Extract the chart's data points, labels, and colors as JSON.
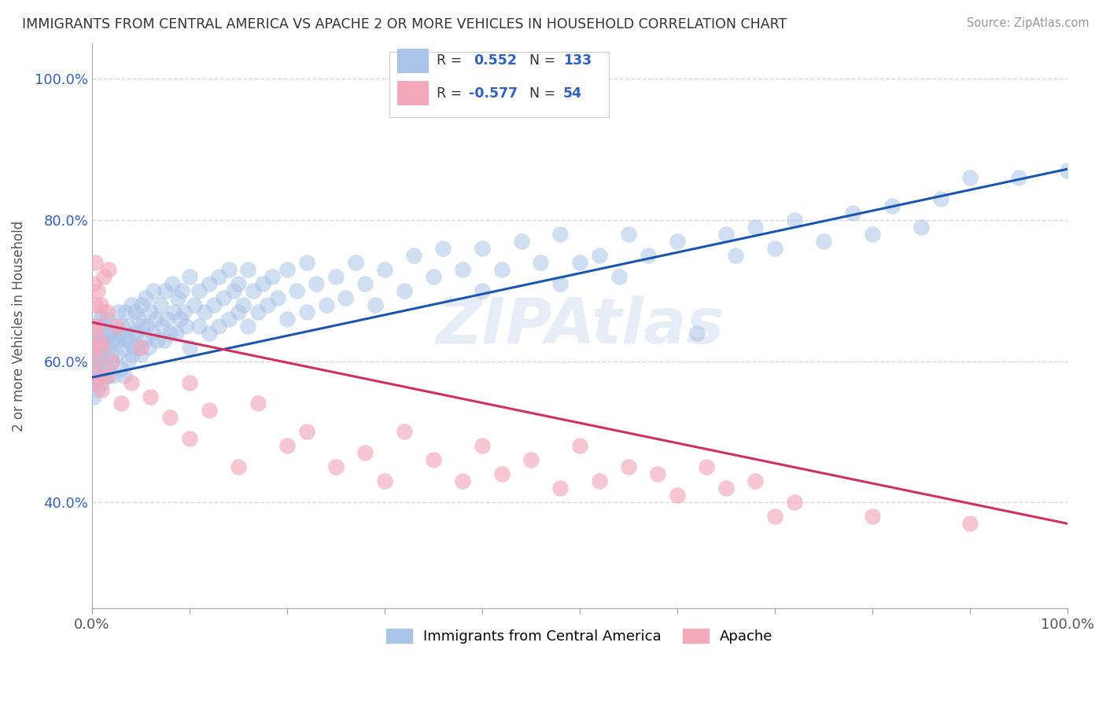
{
  "title": "IMMIGRANTS FROM CENTRAL AMERICA VS APACHE 2 OR MORE VEHICLES IN HOUSEHOLD CORRELATION CHART",
  "source": "Source: ZipAtlas.com",
  "ylabel": "2 or more Vehicles in Household",
  "legend_entries": [
    {
      "label": "Immigrants from Central America",
      "color": "#aac4e8"
    },
    {
      "label": "Apache",
      "color": "#f4a8bc"
    }
  ],
  "blue_scatter": [
    [
      0.001,
      0.57
    ],
    [
      0.002,
      0.6
    ],
    [
      0.002,
      0.55
    ],
    [
      0.003,
      0.62
    ],
    [
      0.003,
      0.58
    ],
    [
      0.004,
      0.61
    ],
    [
      0.004,
      0.64
    ],
    [
      0.005,
      0.59
    ],
    [
      0.005,
      0.63
    ],
    [
      0.006,
      0.56
    ],
    [
      0.006,
      0.6
    ],
    [
      0.007,
      0.62
    ],
    [
      0.007,
      0.65
    ],
    [
      0.008,
      0.58
    ],
    [
      0.008,
      0.63
    ],
    [
      0.009,
      0.61
    ],
    [
      0.009,
      0.66
    ],
    [
      0.01,
      0.57
    ],
    [
      0.01,
      0.63
    ],
    [
      0.01,
      0.6
    ],
    [
      0.01,
      0.67
    ],
    [
      0.012,
      0.58
    ],
    [
      0.012,
      0.62
    ],
    [
      0.012,
      0.65
    ],
    [
      0.013,
      0.6
    ],
    [
      0.014,
      0.63
    ],
    [
      0.015,
      0.59
    ],
    [
      0.015,
      0.66
    ],
    [
      0.016,
      0.62
    ],
    [
      0.017,
      0.58
    ],
    [
      0.018,
      0.64
    ],
    [
      0.019,
      0.61
    ],
    [
      0.02,
      0.6
    ],
    [
      0.02,
      0.65
    ],
    [
      0.021,
      0.63
    ],
    [
      0.022,
      0.58
    ],
    [
      0.023,
      0.64
    ],
    [
      0.025,
      0.61
    ],
    [
      0.026,
      0.63
    ],
    [
      0.027,
      0.67
    ],
    [
      0.028,
      0.64
    ],
    [
      0.03,
      0.59
    ],
    [
      0.031,
      0.65
    ],
    [
      0.032,
      0.62
    ],
    [
      0.033,
      0.58
    ],
    [
      0.034,
      0.67
    ],
    [
      0.035,
      0.63
    ],
    [
      0.036,
      0.65
    ],
    [
      0.037,
      0.6
    ],
    [
      0.038,
      0.63
    ],
    [
      0.04,
      0.68
    ],
    [
      0.041,
      0.61
    ],
    [
      0.042,
      0.64
    ],
    [
      0.043,
      0.62
    ],
    [
      0.044,
      0.67
    ],
    [
      0.045,
      0.64
    ],
    [
      0.046,
      0.62
    ],
    [
      0.048,
      0.66
    ],
    [
      0.05,
      0.61
    ],
    [
      0.051,
      0.68
    ],
    [
      0.052,
      0.65
    ],
    [
      0.054,
      0.63
    ],
    [
      0.055,
      0.69
    ],
    [
      0.056,
      0.65
    ],
    [
      0.058,
      0.62
    ],
    [
      0.06,
      0.67
    ],
    [
      0.062,
      0.64
    ],
    [
      0.063,
      0.7
    ],
    [
      0.065,
      0.66
    ],
    [
      0.067,
      0.63
    ],
    [
      0.07,
      0.68
    ],
    [
      0.072,
      0.65
    ],
    [
      0.074,
      0.63
    ],
    [
      0.075,
      0.7
    ],
    [
      0.077,
      0.66
    ],
    [
      0.08,
      0.64
    ],
    [
      0.082,
      0.71
    ],
    [
      0.084,
      0.67
    ],
    [
      0.086,
      0.64
    ],
    [
      0.088,
      0.69
    ],
    [
      0.09,
      0.66
    ],
    [
      0.092,
      0.7
    ],
    [
      0.094,
      0.67
    ],
    [
      0.096,
      0.65
    ],
    [
      0.1,
      0.62
    ],
    [
      0.1,
      0.72
    ],
    [
      0.105,
      0.68
    ],
    [
      0.11,
      0.65
    ],
    [
      0.11,
      0.7
    ],
    [
      0.115,
      0.67
    ],
    [
      0.12,
      0.64
    ],
    [
      0.12,
      0.71
    ],
    [
      0.125,
      0.68
    ],
    [
      0.13,
      0.65
    ],
    [
      0.13,
      0.72
    ],
    [
      0.135,
      0.69
    ],
    [
      0.14,
      0.66
    ],
    [
      0.14,
      0.73
    ],
    [
      0.145,
      0.7
    ],
    [
      0.15,
      0.67
    ],
    [
      0.15,
      0.71
    ],
    [
      0.155,
      0.68
    ],
    [
      0.16,
      0.65
    ],
    [
      0.16,
      0.73
    ],
    [
      0.165,
      0.7
    ],
    [
      0.17,
      0.67
    ],
    [
      0.175,
      0.71
    ],
    [
      0.18,
      0.68
    ],
    [
      0.185,
      0.72
    ],
    [
      0.19,
      0.69
    ],
    [
      0.2,
      0.66
    ],
    [
      0.2,
      0.73
    ],
    [
      0.21,
      0.7
    ],
    [
      0.22,
      0.67
    ],
    [
      0.22,
      0.74
    ],
    [
      0.23,
      0.71
    ],
    [
      0.24,
      0.68
    ],
    [
      0.25,
      0.72
    ],
    [
      0.26,
      0.69
    ],
    [
      0.27,
      0.74
    ],
    [
      0.28,
      0.71
    ],
    [
      0.29,
      0.68
    ],
    [
      0.3,
      0.73
    ],
    [
      0.32,
      0.7
    ],
    [
      0.33,
      0.75
    ],
    [
      0.35,
      0.72
    ],
    [
      0.36,
      0.76
    ],
    [
      0.38,
      0.73
    ],
    [
      0.4,
      0.7
    ],
    [
      0.4,
      0.76
    ],
    [
      0.42,
      0.73
    ],
    [
      0.44,
      0.77
    ],
    [
      0.46,
      0.74
    ],
    [
      0.48,
      0.71
    ],
    [
      0.48,
      0.78
    ],
    [
      0.5,
      0.74
    ],
    [
      0.52,
      0.75
    ],
    [
      0.54,
      0.72
    ],
    [
      0.55,
      0.78
    ],
    [
      0.57,
      0.75
    ],
    [
      0.6,
      0.77
    ],
    [
      0.62,
      0.64
    ],
    [
      0.65,
      0.78
    ],
    [
      0.66,
      0.75
    ],
    [
      0.68,
      0.79
    ],
    [
      0.7,
      0.76
    ],
    [
      0.72,
      0.8
    ],
    [
      0.75,
      0.77
    ],
    [
      0.78,
      0.81
    ],
    [
      0.8,
      0.78
    ],
    [
      0.82,
      0.82
    ],
    [
      0.85,
      0.79
    ],
    [
      0.87,
      0.83
    ],
    [
      0.9,
      0.86
    ],
    [
      0.95,
      0.86
    ],
    [
      1.0,
      0.87
    ]
  ],
  "pink_scatter": [
    [
      0.001,
      0.65
    ],
    [
      0.001,
      0.62
    ],
    [
      0.002,
      0.71
    ],
    [
      0.002,
      0.57
    ],
    [
      0.003,
      0.68
    ],
    [
      0.003,
      0.74
    ],
    [
      0.004,
      0.6
    ],
    [
      0.005,
      0.65
    ],
    [
      0.006,
      0.7
    ],
    [
      0.007,
      0.58
    ],
    [
      0.008,
      0.63
    ],
    [
      0.009,
      0.68
    ],
    [
      0.01,
      0.56
    ],
    [
      0.01,
      0.62
    ],
    [
      0.012,
      0.72
    ],
    [
      0.015,
      0.58
    ],
    [
      0.015,
      0.67
    ],
    [
      0.017,
      0.73
    ],
    [
      0.02,
      0.6
    ],
    [
      0.025,
      0.65
    ],
    [
      0.03,
      0.54
    ],
    [
      0.04,
      0.57
    ],
    [
      0.05,
      0.62
    ],
    [
      0.06,
      0.55
    ],
    [
      0.08,
      0.52
    ],
    [
      0.1,
      0.57
    ],
    [
      0.1,
      0.49
    ],
    [
      0.12,
      0.53
    ],
    [
      0.15,
      0.45
    ],
    [
      0.17,
      0.54
    ],
    [
      0.2,
      0.48
    ],
    [
      0.22,
      0.5
    ],
    [
      0.25,
      0.45
    ],
    [
      0.28,
      0.47
    ],
    [
      0.3,
      0.43
    ],
    [
      0.32,
      0.5
    ],
    [
      0.35,
      0.46
    ],
    [
      0.38,
      0.43
    ],
    [
      0.4,
      0.48
    ],
    [
      0.42,
      0.44
    ],
    [
      0.45,
      0.46
    ],
    [
      0.48,
      0.42
    ],
    [
      0.5,
      0.48
    ],
    [
      0.52,
      0.43
    ],
    [
      0.55,
      0.45
    ],
    [
      0.58,
      0.44
    ],
    [
      0.6,
      0.41
    ],
    [
      0.63,
      0.45
    ],
    [
      0.65,
      0.42
    ],
    [
      0.68,
      0.43
    ],
    [
      0.7,
      0.38
    ],
    [
      0.72,
      0.4
    ],
    [
      0.8,
      0.38
    ],
    [
      0.9,
      0.37
    ]
  ],
  "blue_line_color": "#1a56b0",
  "pink_line_color": "#d03060",
  "blue_dot_color": "#aac4e8",
  "pink_dot_color": "#f4a8bc",
  "watermark": "ZIPAtlas",
  "background_color": "#ffffff",
  "grid_color": "#d8d8d8",
  "xlim": [
    0.0,
    1.0
  ],
  "ylim": [
    0.25,
    1.05
  ],
  "y_ticks": [
    0.4,
    0.6,
    0.8,
    1.0
  ],
  "x_tick_positions": [
    0.0,
    0.1,
    0.2,
    0.3,
    0.4,
    0.5,
    0.6,
    0.7,
    0.8,
    0.9,
    1.0
  ]
}
